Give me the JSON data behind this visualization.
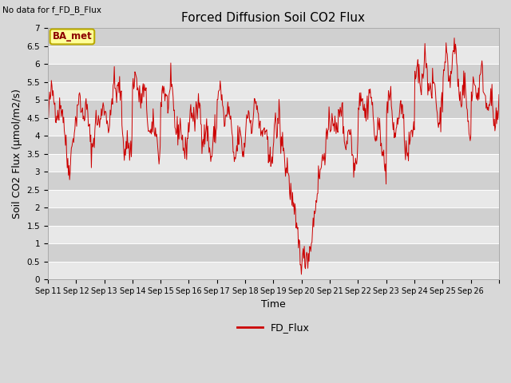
{
  "title": "Forced Diffusion Soil CO2 Flux",
  "top_left_text": "No data for f_FD_B_Flux",
  "xlabel": "Time",
  "ylabel": "Soil CO2 Flux (μmol/m2/s)",
  "ylim": [
    0.0,
    7.0
  ],
  "yticks": [
    0.0,
    0.5,
    1.0,
    1.5,
    2.0,
    2.5,
    3.0,
    3.5,
    4.0,
    4.5,
    5.0,
    5.5,
    6.0,
    6.5,
    7.0
  ],
  "legend_label": "FD_Flux",
  "legend_color": "#cc0000",
  "line_color": "#cc0000",
  "background_color": "#d8d8d8",
  "plot_bg_color": "#d8d8d8",
  "band_color_light": "#e0e0e0",
  "band_color_dark": "#c8c8c8",
  "tag_text": "BA_met",
  "tag_facecolor": "#ffff99",
  "tag_edgecolor": "#bbaa00",
  "x_tick_labels": [
    "Sep 11",
    "Sep 12",
    "Sep 13",
    "Sep 14",
    "Sep 15",
    "Sep 16",
    "Sep 17",
    "Sep 18",
    "Sep 19",
    "Sep 20",
    "Sep 21",
    "Sep 22",
    "Sep 23",
    "Sep 24",
    "Sep 25",
    "Sep 26"
  ],
  "num_days": 16,
  "points_per_day": 48,
  "seed": 42
}
